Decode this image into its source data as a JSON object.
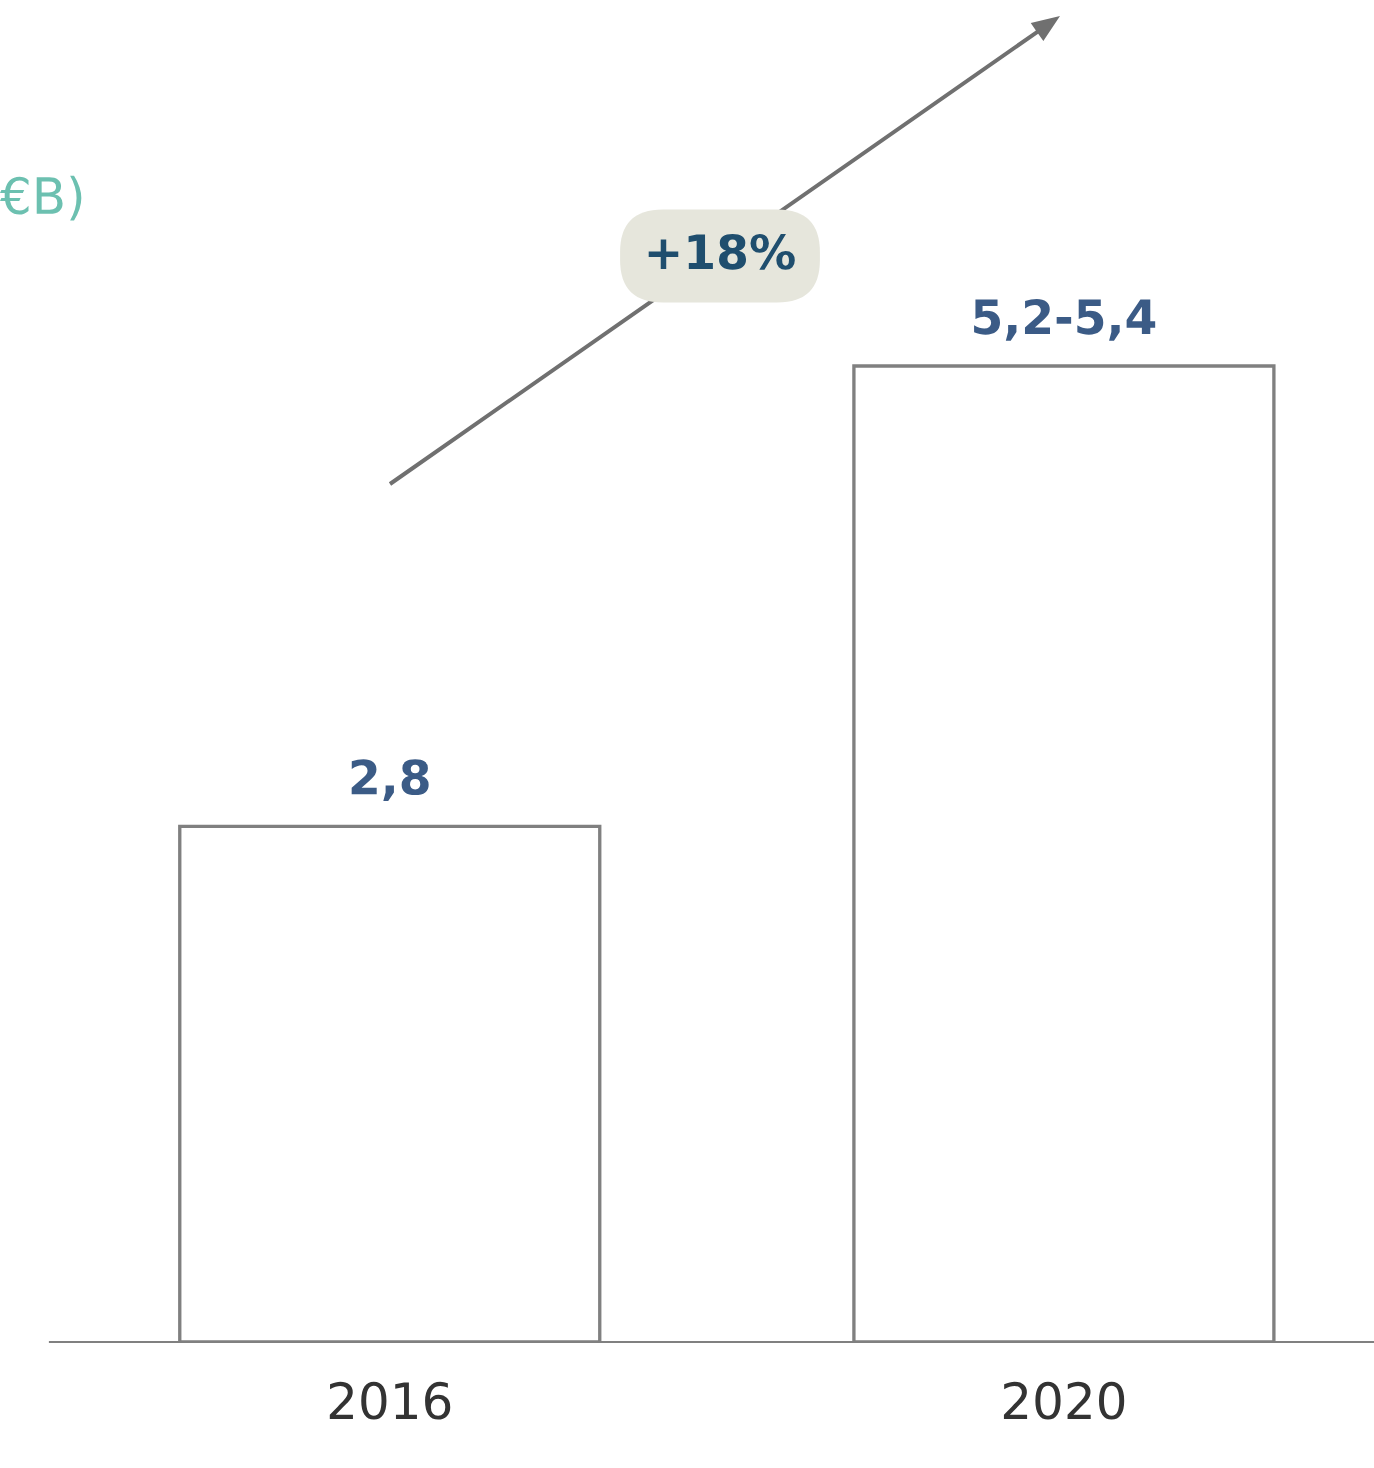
{
  "chart_data": {
    "type": "bar",
    "title": "€B)",
    "categories": [
      "2016",
      "2020"
    ],
    "series": [
      {
        "color": "#ffffff",
        "values": [
          2.8,
          5.3
        ],
        "value_labels": [
          "2,8",
          "5,2-5,4"
        ]
      }
    ],
    "annotations": [
      "+18%"
    ],
    "grid": false,
    "legend": false,
    "tick_labels": "x"
  }
}
